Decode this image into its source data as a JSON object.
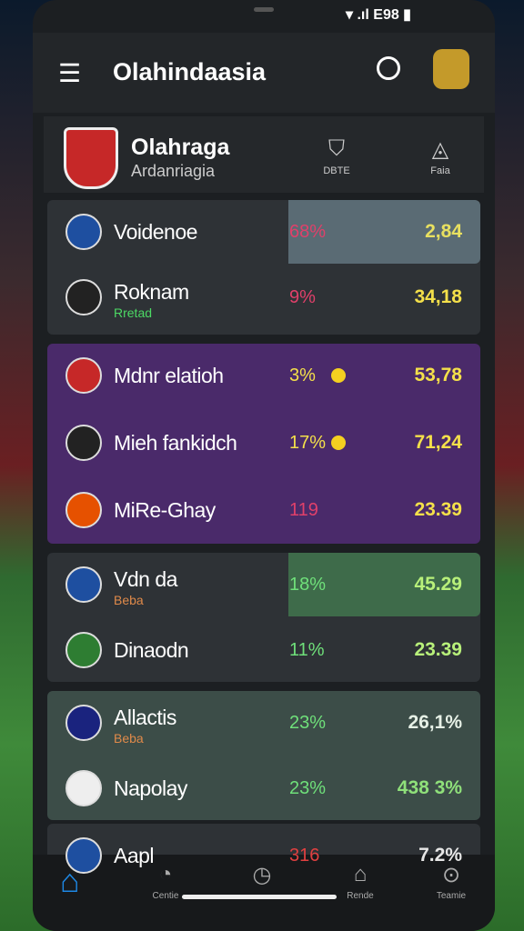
{
  "status": {
    "battery": "E98"
  },
  "header": {
    "title": "Olahindaasia"
  },
  "team": {
    "name": "Olahraga",
    "subtitle": "Ardanriagia",
    "actions": [
      "DBTE",
      "Faia"
    ]
  },
  "rows": [
    {
      "name": "Voidenoe",
      "pct": "68%",
      "value": "2,84"
    },
    {
      "name": "Roknam",
      "sub": "Rretad",
      "pct": "9%",
      "value": "34,18"
    },
    {
      "name": "Mdnr elatioh",
      "pct": "3%",
      "value": "53,78"
    },
    {
      "name": "Mieh fankidch",
      "pct": "17%",
      "value": "71,24"
    },
    {
      "name": "MiRe-Ghay",
      "pct": "119",
      "value": "23.39"
    },
    {
      "name": "Vdn da",
      "sub": "Beba",
      "pct": "18%",
      "value": "45.29"
    },
    {
      "name": "Dinaodn",
      "pct": "11%",
      "value": "23.39"
    },
    {
      "name": "Allactis",
      "sub": "Beba",
      "pct": "23%",
      "value": "26,1%"
    },
    {
      "name": "Napolay",
      "pct": "23%",
      "value": "438 3%"
    },
    {
      "name": "Aapl",
      "pct": "316",
      "value": "7.2%"
    }
  ],
  "nav": [
    "Centie",
    "Rende",
    "Teamie"
  ]
}
